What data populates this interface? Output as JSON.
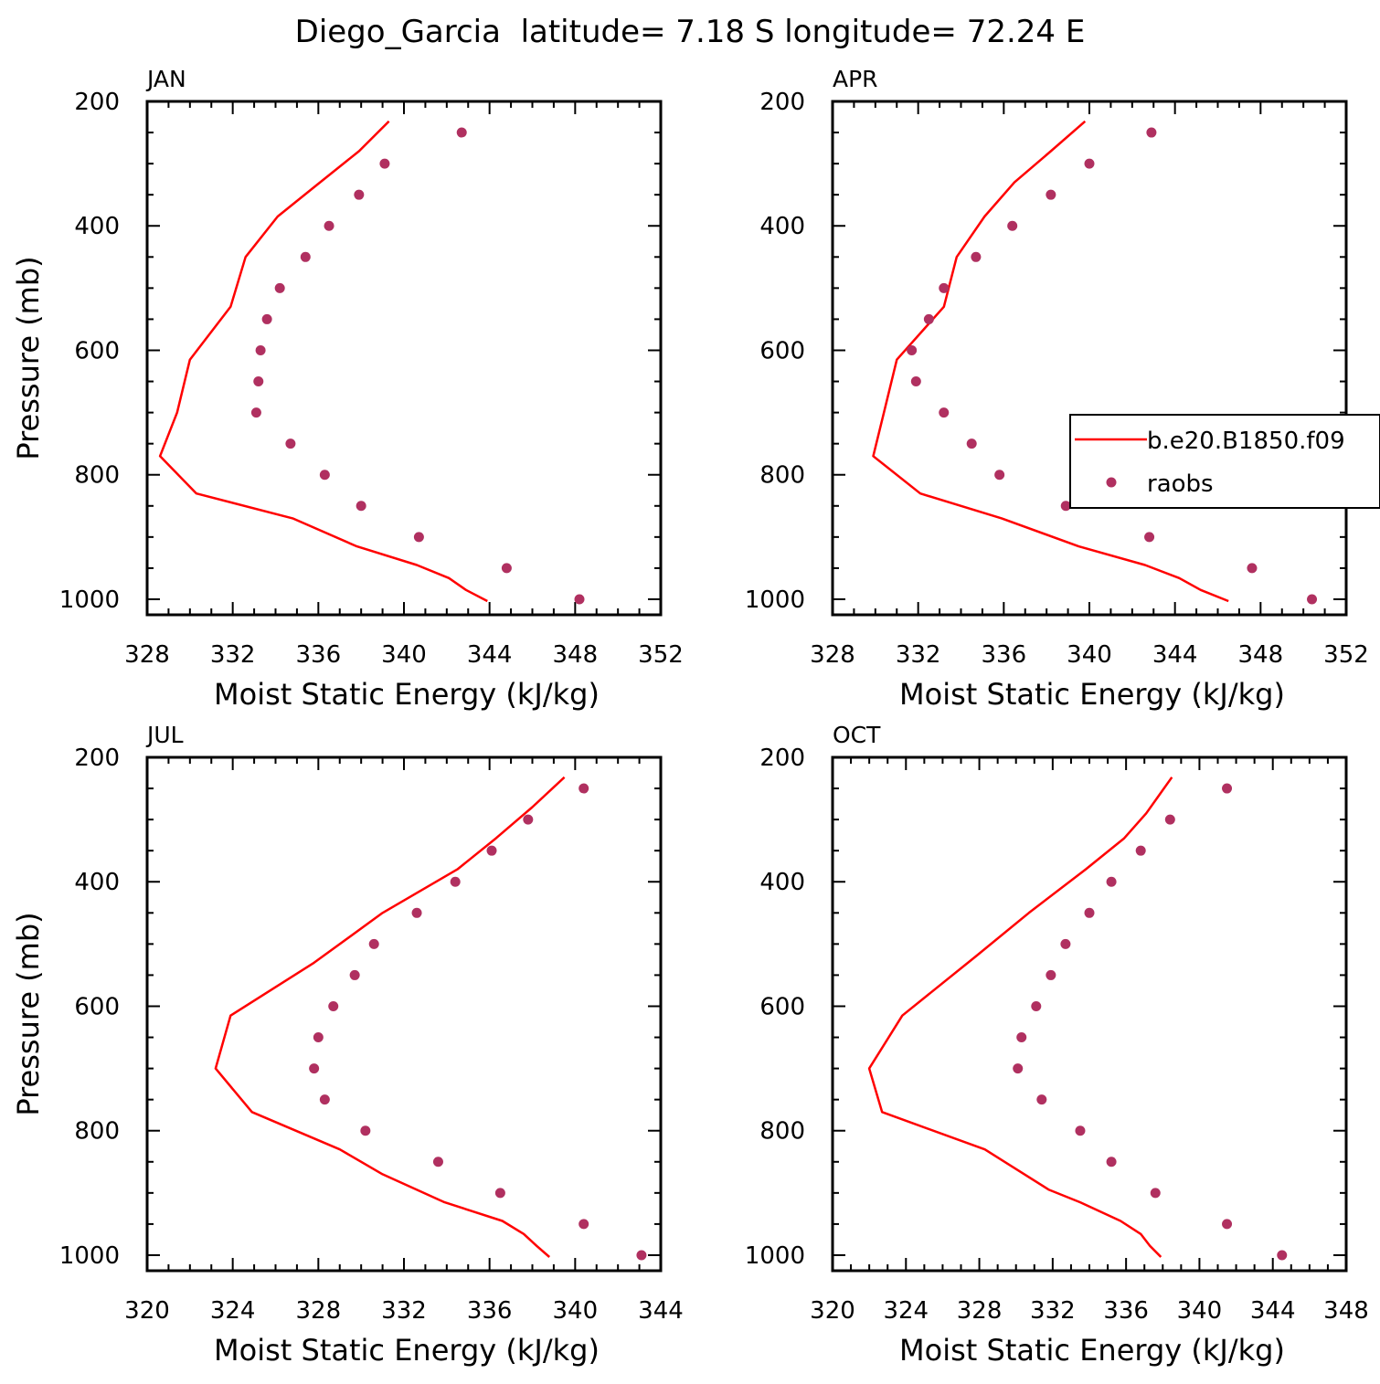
{
  "figure_title": "Diego_Garcia  latitude= 7.18 S longitude= 72.24 E",
  "legend": {
    "line_label": "b.e20.B1850.f09",
    "dot_label": "raobs"
  },
  "colors": {
    "model_line": "#ff0000",
    "raobs_dots": "#b03060",
    "axes": "#000000"
  },
  "chart_data": [
    {
      "type": "line",
      "panel_title": "JAN",
      "xlabel": "Moist Static Energy (kJ/kg)",
      "ylabel": "Pressure (mb)",
      "xlim": [
        328,
        352
      ],
      "ylim": [
        200,
        1025
      ],
      "y_inverted": true,
      "xticks": [
        "328",
        "332",
        "336",
        "340",
        "344",
        "348",
        "352"
      ],
      "yticks": [
        "200",
        "400",
        "600",
        "800",
        "1000"
      ],
      "series": [
        {
          "name": "b.e20.B1850.f09",
          "style": "line",
          "x": [
            343.9,
            342.9,
            342.1,
            340.6,
            337.8,
            334.8,
            330.3,
            328.6,
            329.4,
            330.0,
            331.9,
            332.6,
            334.1,
            335.9,
            337.9,
            339.3
          ],
          "y": [
            1003,
            985,
            966,
            945,
            915,
            870,
            830,
            770,
            700,
            615,
            530,
            450,
            385,
            335,
            280,
            232
          ]
        },
        {
          "name": "raobs",
          "style": "dots",
          "x": [
            348.2,
            344.8,
            340.7,
            338.0,
            336.3,
            334.7,
            333.1,
            333.2,
            333.3,
            333.6,
            334.2,
            335.4,
            336.5,
            337.9,
            339.1,
            342.7
          ],
          "y": [
            1000,
            950,
            900,
            850,
            800,
            750,
            700,
            650,
            600,
            550,
            500,
            450,
            400,
            350,
            300,
            250
          ]
        }
      ]
    },
    {
      "type": "line",
      "panel_title": "APR",
      "xlabel": "Moist Static Energy (kJ/kg)",
      "ylabel": "",
      "xlim": [
        328,
        352
      ],
      "ylim": [
        200,
        1025
      ],
      "y_inverted": true,
      "xticks": [
        "328",
        "332",
        "336",
        "340",
        "344",
        "348",
        "352"
      ],
      "yticks": [
        "200",
        "400",
        "600",
        "800",
        "1000"
      ],
      "series": [
        {
          "name": "b.e20.B1850.f09",
          "style": "line",
          "x": [
            346.5,
            345.2,
            344.2,
            342.6,
            339.5,
            335.9,
            332.1,
            329.9,
            330.4,
            331.0,
            333.2,
            333.8,
            335.1,
            336.5,
            338.2,
            339.8
          ],
          "y": [
            1003,
            985,
            966,
            945,
            915,
            870,
            830,
            770,
            700,
            615,
            530,
            450,
            385,
            330,
            280,
            232
          ]
        },
        {
          "name": "raobs",
          "style": "dots",
          "x": [
            350.4,
            347.6,
            342.8,
            338.9,
            335.8,
            334.5,
            333.2,
            331.9,
            331.7,
            332.5,
            333.2,
            334.7,
            336.4,
            338.2,
            340.0,
            342.9
          ],
          "y": [
            1000,
            950,
            900,
            850,
            800,
            750,
            700,
            650,
            600,
            550,
            500,
            450,
            400,
            350,
            300,
            250
          ]
        }
      ],
      "legend_position": "right-middle"
    },
    {
      "type": "line",
      "panel_title": "JUL",
      "xlabel": "Moist Static Energy (kJ/kg)",
      "ylabel": "Pressure (mb)",
      "xlim": [
        320,
        344
      ],
      "ylim": [
        200,
        1025
      ],
      "y_inverted": true,
      "xticks": [
        "320",
        "324",
        "328",
        "332",
        "336",
        "340",
        "344"
      ],
      "yticks": [
        "200",
        "400",
        "600",
        "800",
        "1000"
      ],
      "series": [
        {
          "name": "b.e20.B1850.f09",
          "style": "line",
          "x": [
            338.8,
            338.2,
            337.6,
            336.6,
            333.9,
            331.0,
            329.0,
            324.9,
            323.2,
            323.9,
            327.8,
            331.0,
            334.5,
            336.3,
            338.0,
            339.5
          ],
          "y": [
            1003,
            985,
            966,
            945,
            915,
            870,
            830,
            770,
            700,
            615,
            530,
            450,
            380,
            330,
            280,
            232
          ]
        },
        {
          "name": "raobs",
          "style": "dots",
          "x": [
            343.1,
            340.4,
            336.5,
            333.6,
            330.2,
            328.3,
            327.8,
            328.0,
            328.7,
            329.7,
            330.6,
            332.6,
            334.4,
            336.1,
            337.8,
            340.4
          ],
          "y": [
            1000,
            950,
            900,
            850,
            800,
            750,
            700,
            650,
            600,
            550,
            500,
            450,
            400,
            350,
            300,
            250
          ]
        }
      ]
    },
    {
      "type": "line",
      "panel_title": "OCT",
      "xlabel": "Moist Static Energy (kJ/kg)",
      "ylabel": "",
      "xlim": [
        320,
        348
      ],
      "ylim": [
        200,
        1025
      ],
      "y_inverted": true,
      "xticks": [
        "320",
        "324",
        "328",
        "332",
        "336",
        "340",
        "344",
        "348"
      ],
      "yticks": [
        "200",
        "400",
        "600",
        "800",
        "1000"
      ],
      "series": [
        {
          "name": "b.e20.B1850.f09",
          "style": "line",
          "x": [
            337.9,
            337.3,
            336.8,
            335.7,
            333.5,
            331.8,
            328.3,
            322.7,
            322.0,
            323.8,
            327.8,
            330.7,
            333.8,
            335.9,
            337.1,
            338.5
          ],
          "y": [
            1003,
            985,
            966,
            945,
            915,
            895,
            830,
            770,
            700,
            615,
            520,
            450,
            380,
            330,
            290,
            232
          ]
        },
        {
          "name": "raobs",
          "style": "dots",
          "x": [
            344.5,
            341.5,
            337.6,
            335.2,
            333.5,
            331.4,
            330.1,
            330.3,
            331.1,
            331.9,
            332.7,
            334.0,
            335.2,
            336.8,
            338.4,
            341.5
          ],
          "y": [
            1000,
            950,
            900,
            850,
            800,
            750,
            700,
            650,
            600,
            550,
            500,
            450,
            400,
            350,
            300,
            250
          ]
        }
      ]
    }
  ]
}
